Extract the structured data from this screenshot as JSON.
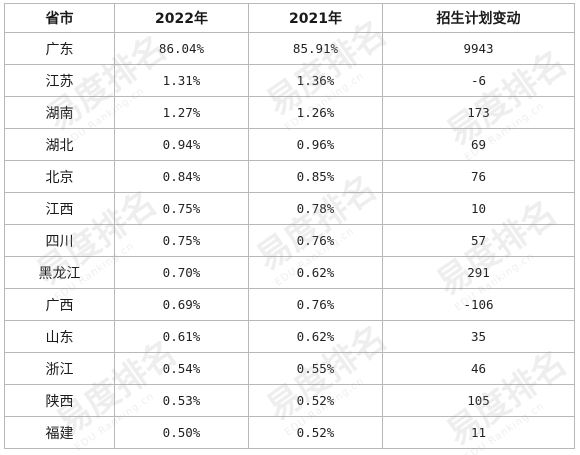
{
  "table": {
    "headers": [
      "省市",
      "2022年",
      "2021年",
      "招生计划变动"
    ],
    "rows": [
      {
        "region": "广东",
        "y2022": "86.04%",
        "y2021": "85.91%",
        "change": "9943"
      },
      {
        "region": "江苏",
        "y2022": "1.31%",
        "y2021": "1.36%",
        "change": "-6"
      },
      {
        "region": "湖南",
        "y2022": "1.27%",
        "y2021": "1.26%",
        "change": "173"
      },
      {
        "region": "湖北",
        "y2022": "0.94%",
        "y2021": "0.96%",
        "change": "69"
      },
      {
        "region": "北京",
        "y2022": "0.84%",
        "y2021": "0.85%",
        "change": "76"
      },
      {
        "region": "江西",
        "y2022": "0.75%",
        "y2021": "0.78%",
        "change": "10"
      },
      {
        "region": "四川",
        "y2022": "0.75%",
        "y2021": "0.76%",
        "change": "57"
      },
      {
        "region": "黑龙江",
        "y2022": "0.70%",
        "y2021": "0.62%",
        "change": "291"
      },
      {
        "region": "广西",
        "y2022": "0.69%",
        "y2021": "0.76%",
        "change": "-106"
      },
      {
        "region": "山东",
        "y2022": "0.61%",
        "y2021": "0.62%",
        "change": "35"
      },
      {
        "region": "浙江",
        "y2022": "0.54%",
        "y2021": "0.55%",
        "change": "46"
      },
      {
        "region": "陕西",
        "y2022": "0.53%",
        "y2021": "0.52%",
        "change": "105"
      },
      {
        "region": "福建",
        "y2022": "0.50%",
        "y2021": "0.52%",
        "change": "11"
      }
    ]
  },
  "watermark": {
    "brand": "易度排名",
    "sub": "EDU Ranking.cn"
  }
}
